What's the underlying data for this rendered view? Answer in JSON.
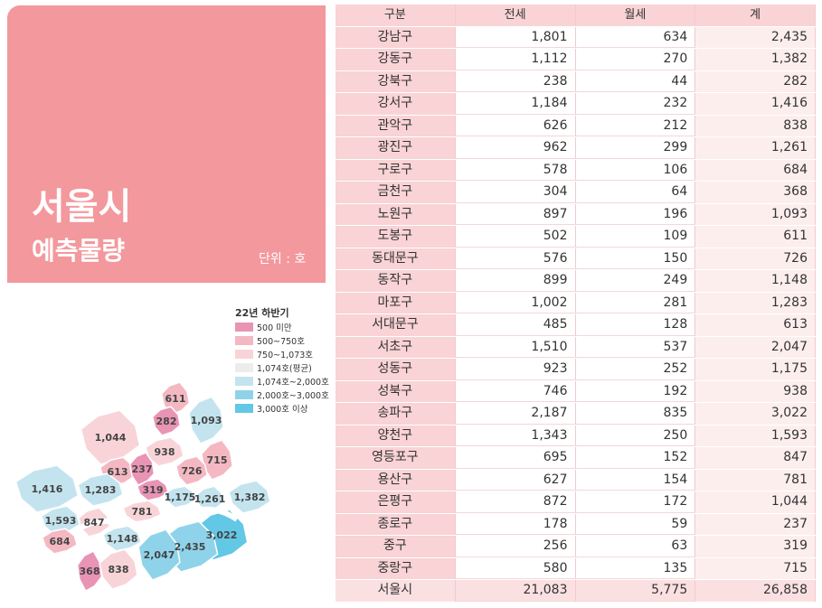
{
  "header": {
    "title": "서울시",
    "subtitle": "예측물량",
    "unit": "단위 : 호"
  },
  "legend": {
    "title": "22년 하반기",
    "items": [
      "500 미만",
      "500~750호",
      "750~1,073호",
      "1,074호(평균)",
      "1,074호~2,000호",
      "2,000호~3,000호",
      "3,000호 이상"
    ]
  },
  "map": {
    "labels": [
      "611",
      "282",
      "1,093",
      "1,044",
      "938",
      "715",
      "613",
      "237",
      "726",
      "319",
      "1,416",
      "1,283",
      "1,175",
      "1,261",
      "1,382",
      "781",
      "1,593",
      "847",
      "3,022",
      "684",
      "1,148",
      "2,435",
      "2,047",
      "368",
      "838"
    ]
  },
  "table": {
    "columns": [
      "구분",
      "전세",
      "월세",
      "계"
    ],
    "rows": [
      [
        "강남구",
        "1,801",
        "634",
        "2,435"
      ],
      [
        "강동구",
        "1,112",
        "270",
        "1,382"
      ],
      [
        "강북구",
        "238",
        "44",
        "282"
      ],
      [
        "강서구",
        "1,184",
        "232",
        "1,416"
      ],
      [
        "관악구",
        "626",
        "212",
        "838"
      ],
      [
        "광진구",
        "962",
        "299",
        "1,261"
      ],
      [
        "구로구",
        "578",
        "106",
        "684"
      ],
      [
        "금천구",
        "304",
        "64",
        "368"
      ],
      [
        "노원구",
        "897",
        "196",
        "1,093"
      ],
      [
        "도봉구",
        "502",
        "109",
        "611"
      ],
      [
        "동대문구",
        "576",
        "150",
        "726"
      ],
      [
        "동작구",
        "899",
        "249",
        "1,148"
      ],
      [
        "마포구",
        "1,002",
        "281",
        "1,283"
      ],
      [
        "서대문구",
        "485",
        "128",
        "613"
      ],
      [
        "서초구",
        "1,510",
        "537",
        "2,047"
      ],
      [
        "성동구",
        "923",
        "252",
        "1,175"
      ],
      [
        "성북구",
        "746",
        "192",
        "938"
      ],
      [
        "송파구",
        "2,187",
        "835",
        "3,022"
      ],
      [
        "양천구",
        "1,343",
        "250",
        "1,593"
      ],
      [
        "영등포구",
        "695",
        "152",
        "847"
      ],
      [
        "용산구",
        "627",
        "154",
        "781"
      ],
      [
        "은평구",
        "872",
        "172",
        "1,044"
      ],
      [
        "종로구",
        "178",
        "59",
        "237"
      ],
      [
        "중구",
        "256",
        "63",
        "319"
      ],
      [
        "중랑구",
        "580",
        "135",
        "715"
      ],
      [
        "서울시",
        "21,083",
        "5,775",
        "26,858"
      ]
    ]
  }
}
